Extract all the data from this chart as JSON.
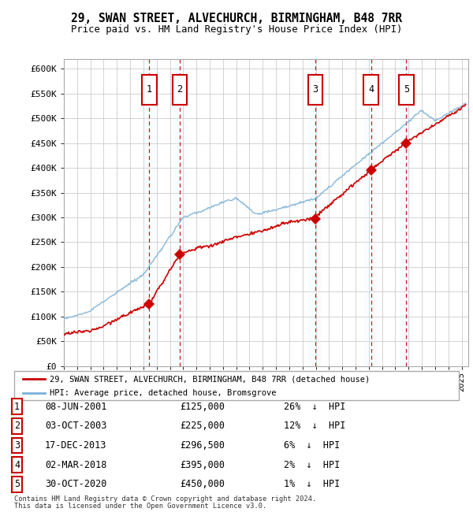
{
  "title": "29, SWAN STREET, ALVECHURCH, BIRMINGHAM, B48 7RR",
  "subtitle": "Price paid vs. HM Land Registry's House Price Index (HPI)",
  "legend_line1": "29, SWAN STREET, ALVECHURCH, BIRMINGHAM, B48 7RR (detached house)",
  "legend_line2": "HPI: Average price, detached house, Bromsgrove",
  "footer_line1": "Contains HM Land Registry data © Crown copyright and database right 2024.",
  "footer_line2": "This data is licensed under the Open Government Licence v3.0.",
  "transactions": [
    {
      "num": 1,
      "date": "08-JUN-2001",
      "price": 125000,
      "pct": "26%",
      "year_x": 2001.44
    },
    {
      "num": 2,
      "date": "03-OCT-2003",
      "price": 225000,
      "pct": "12%",
      "year_x": 2003.75
    },
    {
      "num": 3,
      "date": "17-DEC-2013",
      "price": 296500,
      "pct": "6%",
      "year_x": 2013.96
    },
    {
      "num": 4,
      "date": "02-MAR-2018",
      "price": 395000,
      "pct": "2%",
      "year_x": 2018.17
    },
    {
      "num": 5,
      "date": "30-OCT-2020",
      "price": 450000,
      "pct": "1%",
      "year_x": 2020.83
    }
  ],
  "hpi_color": "#7ab0d8",
  "price_color": "#cc0000",
  "vline_color": "#cc0000",
  "shade_color": "#ddeeff",
  "ylim": [
    0,
    620000
  ],
  "xlim_start": 1995.0,
  "xlim_end": 2025.5,
  "yticks": [
    0,
    50000,
    100000,
    150000,
    200000,
    250000,
    300000,
    350000,
    400000,
    450000,
    500000,
    550000,
    600000
  ],
  "ytick_labels": [
    "£0",
    "£50K",
    "£100K",
    "£150K",
    "£200K",
    "£250K",
    "£300K",
    "£350K",
    "£400K",
    "£450K",
    "£500K",
    "£550K",
    "£600K"
  ]
}
